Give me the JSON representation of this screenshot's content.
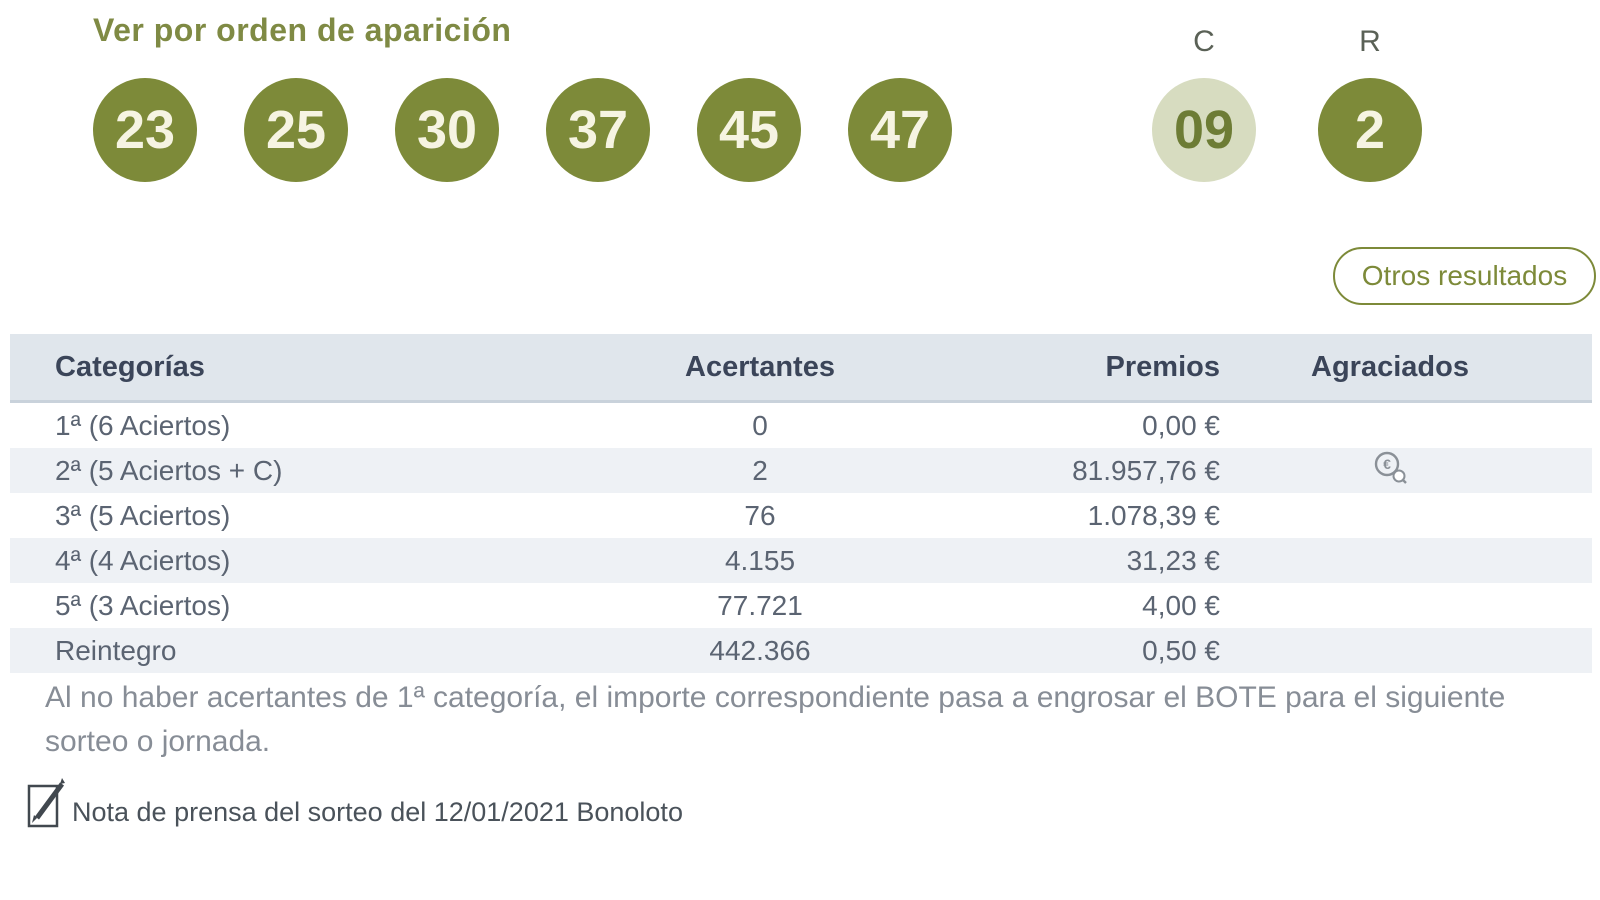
{
  "page": {
    "title": "Ver por orden de aparición",
    "combination": {
      "numbers": [
        "23",
        "25",
        "30",
        "37",
        "45",
        "47"
      ],
      "complementario": {
        "label": "C",
        "value": "09"
      },
      "reintegro": {
        "label": "R",
        "value": "2"
      }
    },
    "other_results_button": "Otros resultados",
    "table": {
      "headers": [
        "Categorías",
        "Acertantes",
        "Premios",
        "Agraciados"
      ],
      "rows": [
        {
          "category": "1ª (6 Aciertos)",
          "winners": "0",
          "prize": "0,00 €",
          "agraciados_icon": false
        },
        {
          "category": "2ª (5 Aciertos + C)",
          "winners": "2",
          "prize": "81.957,76 €",
          "agraciados_icon": true
        },
        {
          "category": "3ª (5 Aciertos)",
          "winners": "76",
          "prize": "1.078,39 €",
          "agraciados_icon": false
        },
        {
          "category": "4ª (4 Aciertos)",
          "winners": "4.155",
          "prize": "31,23 €",
          "agraciados_icon": false
        },
        {
          "category": "5ª (3 Aciertos)",
          "winners": "77.721",
          "prize": "4,00 €",
          "agraciados_icon": false
        },
        {
          "category": "Reintegro",
          "winners": "442.366",
          "prize": "0,50 €",
          "agraciados_icon": false
        }
      ]
    },
    "bote_note": "Al no haber acertantes de 1ª categoría, el importe correspondiente pasa a engrosar el BOTE para el siguiente sorteo o jornada.",
    "press_note": "Nota de prensa del sorteo del 12/01/2021 Bonoloto",
    "colors": {
      "olive": "#7d8a39",
      "olive_light_ball": "#d7dcc0",
      "header_bg": "#e0e6ec",
      "row_alt_bg": "#eef1f5",
      "header_text": "#3b4559",
      "row_text": "#5b6472",
      "muted_text": "#878d96"
    }
  }
}
